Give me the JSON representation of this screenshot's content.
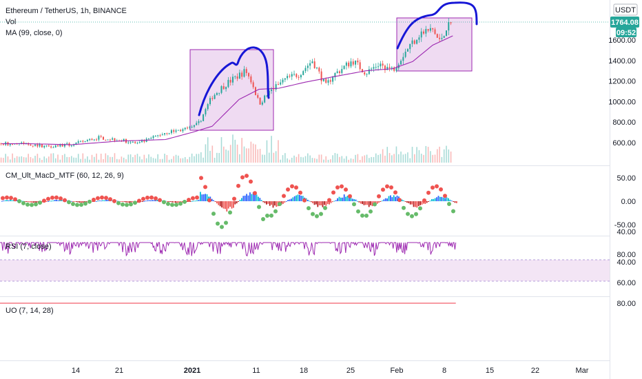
{
  "header": {
    "title": "Ethereum / TetherUS, 1h, BINANCE",
    "vol_label": "Vol",
    "ma_label": "MA (99, close, 0)",
    "currency": "USDT",
    "last_price": "1764.08",
    "countdown": "09:52"
  },
  "panes": {
    "macd_label": "CM_Ult_MacD_MTF (60, 12, 26, 9)",
    "rsi_label": "RSI (7, close)",
    "uo_label": "UO (7, 14, 28)"
  },
  "colors": {
    "up": "#26a69a",
    "down": "#ef5350",
    "ma": "#9c27b0",
    "rsi": "#9c27b0",
    "uo": "#f23645",
    "box_fill": "#e1bee7",
    "box_stroke": "#9c27b0",
    "arc": "#1717d6",
    "badge_price": "#26a69a"
  },
  "chart_data": [
    {
      "type": "candlestick",
      "title": "Ethereum / TetherUS, 1h, BINANCE",
      "ylim": [
        450,
        1800
      ],
      "y_ticks": [
        "600.00",
        "800.00",
        "1000.00",
        "1200.00",
        "1400.00",
        "1600.00"
      ],
      "x_ticks": [
        "14",
        "21",
        "2021",
        "11",
        "18",
        "25",
        "Feb",
        "8",
        "15",
        "22",
        "Mar"
      ],
      "price_path": [
        {
          "t": "Dec 7",
          "price": 590
        },
        {
          "t": "Dec 10",
          "price": 565
        },
        {
          "t": "Dec 14",
          "price": 580
        },
        {
          "t": "Dec 18",
          "price": 650
        },
        {
          "t": "Dec 21",
          "price": 630
        },
        {
          "t": "Dec 24",
          "price": 590
        },
        {
          "t": "Dec 28",
          "price": 700
        },
        {
          "t": "Jan 1",
          "price": 740
        },
        {
          "t": "Jan 2",
          "price": 790
        },
        {
          "t": "Jan 4",
          "price": 1050
        },
        {
          "t": "Jan 6",
          "price": 1170
        },
        {
          "t": "Jan 9",
          "price": 1300
        },
        {
          "t": "Jan 10",
          "price": 1180
        },
        {
          "t": "Jan 11",
          "price": 980
        },
        {
          "t": "Jan 13",
          "price": 1120
        },
        {
          "t": "Jan 15",
          "price": 1220
        },
        {
          "t": "Jan 17",
          "price": 1270
        },
        {
          "t": "Jan 19",
          "price": 1400
        },
        {
          "t": "Jan 21",
          "price": 1150
        },
        {
          "t": "Jan 22",
          "price": 1250
        },
        {
          "t": "Jan 25",
          "price": 1400
        },
        {
          "t": "Jan 27",
          "price": 1280
        },
        {
          "t": "Jan 29",
          "price": 1370
        },
        {
          "t": "Jan 31",
          "price": 1310
        },
        {
          "t": "Feb 2",
          "price": 1500
        },
        {
          "t": "Feb 4",
          "price": 1660
        },
        {
          "t": "Feb 6",
          "price": 1700
        },
        {
          "t": "Feb 7",
          "price": 1580
        },
        {
          "t": "Feb 8",
          "price": 1720
        },
        {
          "t": "Feb 9",
          "price": 1764
        }
      ],
      "ma_path": [
        {
          "t": "Dec 7",
          "price": 590
        },
        {
          "t": "Dec 14",
          "price": 580
        },
        {
          "t": "Dec 21",
          "price": 615
        },
        {
          "t": "Dec 28",
          "price": 630
        },
        {
          "t": "Jan 1",
          "price": 700
        },
        {
          "t": "Jan 4",
          "price": 760
        },
        {
          "t": "Jan 8",
          "price": 1020
        },
        {
          "t": "Jan 11",
          "price": 1120
        },
        {
          "t": "Jan 14",
          "price": 1130
        },
        {
          "t": "Jan 18",
          "price": 1190
        },
        {
          "t": "Jan 22",
          "price": 1240
        },
        {
          "t": "Jan 27",
          "price": 1300
        },
        {
          "t": "Jan 31",
          "price": 1320
        },
        {
          "t": "Feb 3",
          "price": 1390
        },
        {
          "t": "Feb 6",
          "price": 1550
        },
        {
          "t": "Feb 9",
          "price": 1640
        }
      ]
    },
    {
      "type": "histogram",
      "title": "CM_Ult_MacD_MTF (60, 12, 26, 9)",
      "ylim": [
        -60,
        65
      ],
      "y_ticks": [
        "50.00",
        "0.00",
        "-50.00"
      ]
    },
    {
      "type": "line",
      "title": "RSI (7, close)",
      "ylim": [
        15,
        95
      ],
      "band": [
        30,
        70
      ],
      "y_ticks": [
        "80.00",
        "40.00"
      ]
    },
    {
      "type": "line",
      "title": "UO (7, 14, 28)",
      "ylim": [
        25,
        82
      ],
      "y_ticks": [
        "80.00",
        "60.00",
        "40.00"
      ]
    }
  ]
}
